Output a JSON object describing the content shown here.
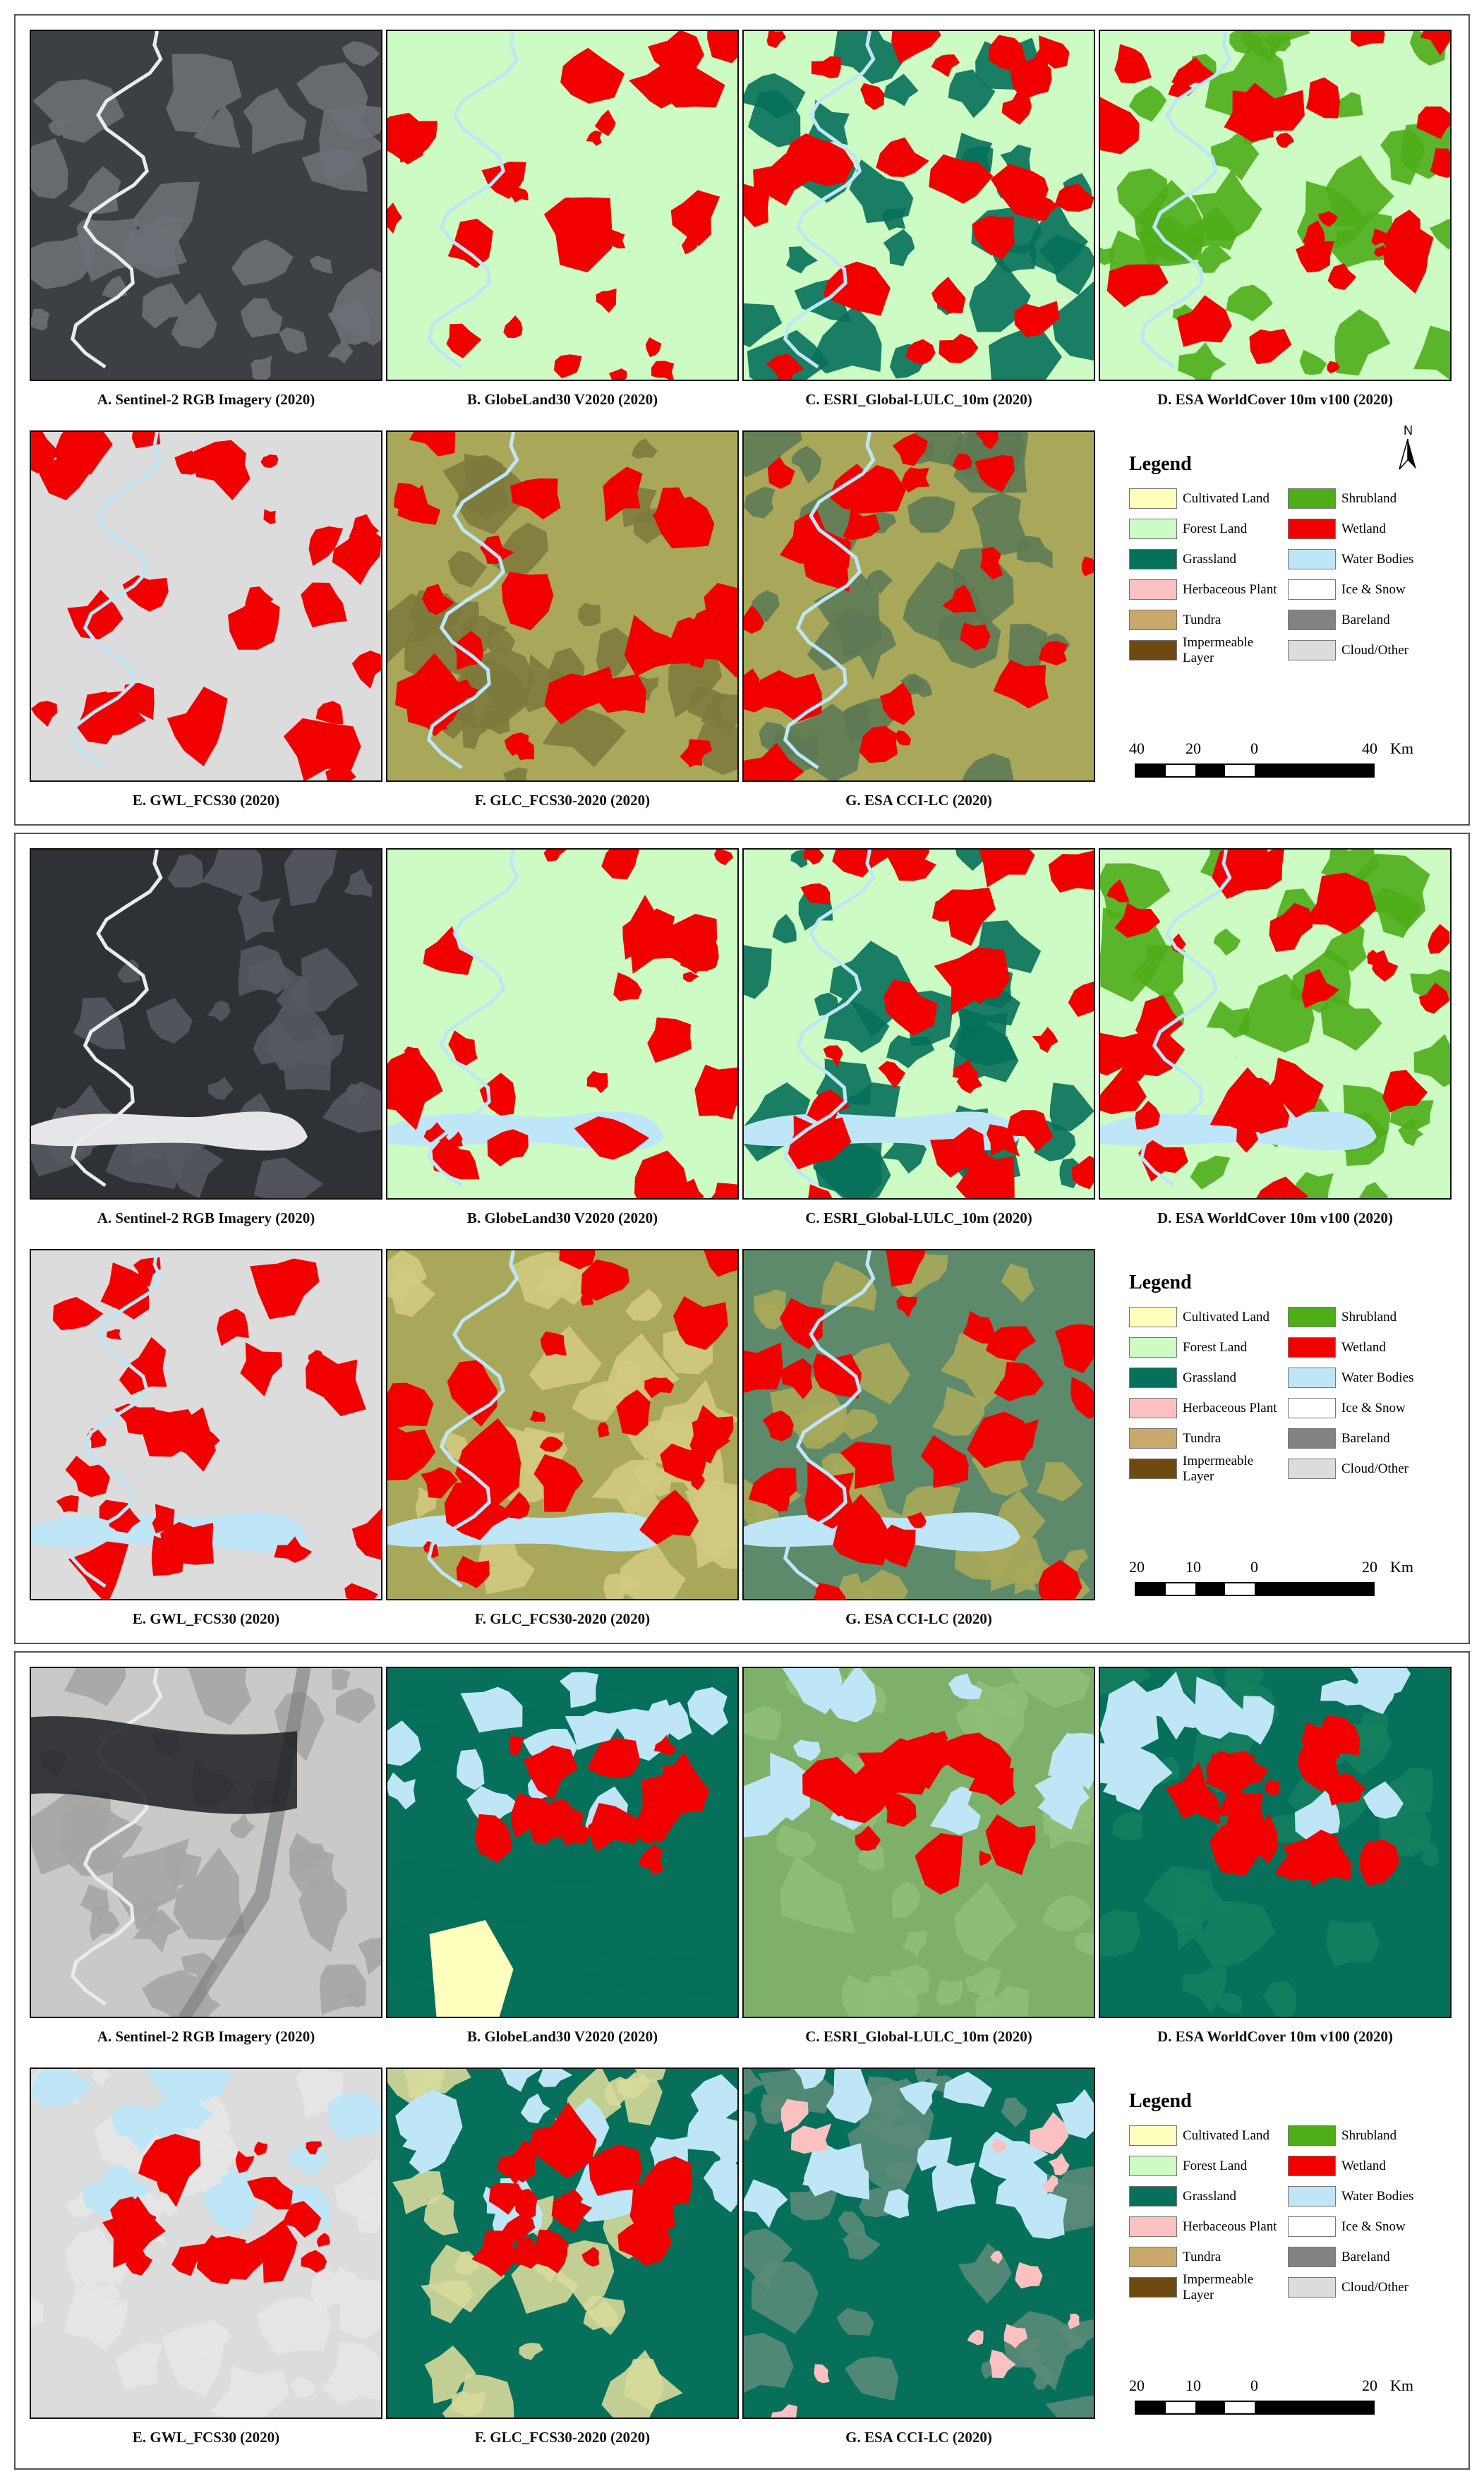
{
  "legend": {
    "title": "Legend",
    "classes": [
      {
        "label": "Cultivated Land",
        "color": "#ffffbe"
      },
      {
        "label": "Shrubland",
        "color": "#4fad1a"
      },
      {
        "label": "Forest Land",
        "color": "#ccfcc4"
      },
      {
        "label": "Wetland",
        "color": "#f20000"
      },
      {
        "label": "Grassland",
        "color": "#06705a"
      },
      {
        "label": "Water Bodies",
        "color": "#bfe6f7"
      },
      {
        "label": "Herbaceous Plant",
        "color": "#fbc1c1"
      },
      {
        "label": "Ice & Snow",
        "color": "#ffffff"
      },
      {
        "label": "Tundra",
        "color": "#c9a86b"
      },
      {
        "label": "Bareland",
        "color": "#828282"
      },
      {
        "label": "Impermeable Layer",
        "color": "#6e4a12"
      },
      {
        "label": "Cloud/Other",
        "color": "#dcdcdc"
      }
    ]
  },
  "north_label": "N",
  "groups": [
    {
      "captions": [
        "A. Sentinel-2 RGB Imagery (2020)",
        "B. GlobeLand30 V2020 (2020)",
        "C. ESRI_Global-LULC_10m (2020)",
        "D. ESA WorldCover 10m v100 (2020)",
        "E. GWL_FCS30 (2020)",
        "F. GLC_FCS30-2020 (2020)",
        "G. ESA CCI-LC (2020)"
      ],
      "scale": {
        "left": "40",
        "mid": "20",
        "zero": "0",
        "right": "40",
        "unit": "Km"
      }
    },
    {
      "captions": [
        "A. Sentinel-2 RGB Imagery (2020)",
        "B. GlobeLand30 V2020 (2020)",
        "C. ESRI_Global-LULC_10m (2020)",
        "D. ESA WorldCover 10m v100 (2020)",
        "E. GWL_FCS30 (2020)",
        "F. GLC_FCS30-2020 (2020)",
        "G. ESA CCI-LC (2020)"
      ],
      "scale": {
        "left": "20",
        "mid": "10",
        "zero": "0",
        "right": "20",
        "unit": "Km"
      }
    },
    {
      "captions": [
        "A. Sentinel-2 RGB Imagery (2020)",
        "B. GlobeLand30 V2020 (2020)",
        "C. ESRI_Global-LULC_10m (2020)",
        "D. ESA WorldCover 10m v100 (2020)",
        "E. GWL_FCS30 (2020)",
        "F. GLC_FCS30-2020 (2020)",
        "G. ESA CCI-LC (2020)"
      ],
      "scale": {
        "left": "20",
        "mid": "10",
        "zero": "0",
        "right": "20",
        "unit": "Km"
      }
    }
  ],
  "map_styles": {
    "group0": [
      "rgb",
      "globe_red",
      "esri_green",
      "worldcover",
      "gwl_gray",
      "glc_olive",
      "cci_olive"
    ],
    "group1": [
      "rgb_lake",
      "globe_lake",
      "esri_lake",
      "worldcover_lake",
      "gwl_lake",
      "glc_lake",
      "cci_lake"
    ],
    "group2": [
      "rgb_snow",
      "globe_grass",
      "esri_grass",
      "worldcover_grass",
      "gwl_light",
      "glc_dark",
      "cci_dark"
    ]
  }
}
